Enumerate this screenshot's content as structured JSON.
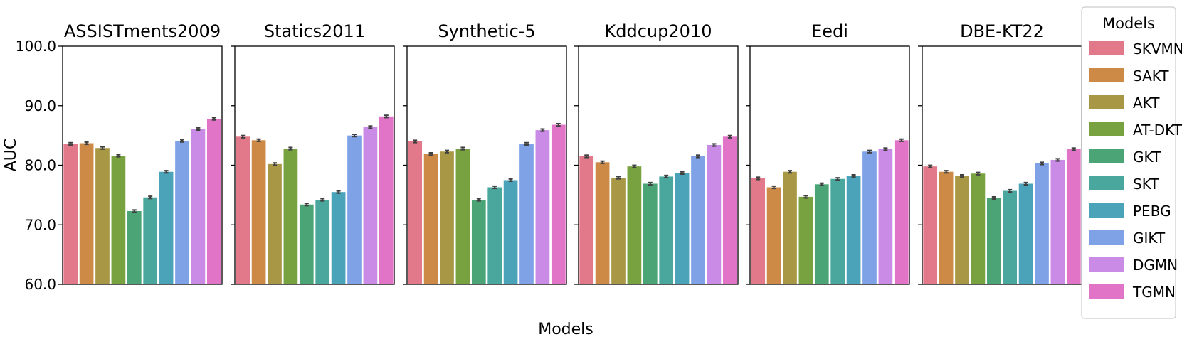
{
  "chart_data": {
    "type": "bar",
    "ylabel": "AUC",
    "xlabel": "Models",
    "ylim": [
      60.0,
      100.0
    ],
    "yticks": [
      "60.0",
      "70.0",
      "80.0",
      "90.0",
      "100.0"
    ],
    "legend": {
      "title": "Models",
      "placement": "right"
    },
    "models": [
      "SKVMN",
      "SAKT",
      "AKT",
      "AT-DKT",
      "GKT",
      "SKT",
      "PEBG",
      "GIKT",
      "DGMN",
      "TGMN"
    ],
    "colors": [
      "#e1798a",
      "#cc8a46",
      "#a89744",
      "#78a23f",
      "#4aa476",
      "#49a79d",
      "#4aa3b8",
      "#7fa2e6",
      "#c98be6",
      "#e274c7"
    ],
    "panels": [
      {
        "title": "ASSISTments2009",
        "values": [
          83.6,
          83.7,
          82.9,
          81.6,
          72.3,
          74.6,
          78.9,
          84.1,
          86.1,
          87.8
        ]
      },
      {
        "title": "Statics2011",
        "values": [
          84.8,
          84.2,
          80.2,
          82.8,
          73.4,
          74.2,
          75.5,
          85.0,
          86.4,
          88.2
        ]
      },
      {
        "title": "Synthetic-5",
        "values": [
          84.0,
          81.9,
          82.3,
          82.8,
          74.2,
          76.3,
          77.5,
          83.6,
          85.9,
          86.8
        ]
      },
      {
        "title": "Kddcup2010",
        "values": [
          81.5,
          80.5,
          77.9,
          79.8,
          76.9,
          78.1,
          78.7,
          81.5,
          83.4,
          84.8
        ]
      },
      {
        "title": "Eedi",
        "values": [
          77.8,
          76.3,
          78.9,
          74.7,
          76.8,
          77.7,
          78.2,
          82.3,
          82.7,
          84.2
        ]
      },
      {
        "title": "DBE-KT22",
        "values": [
          79.8,
          78.9,
          78.2,
          78.6,
          74.5,
          75.7,
          76.9,
          80.3,
          80.9,
          82.7
        ]
      }
    ]
  }
}
